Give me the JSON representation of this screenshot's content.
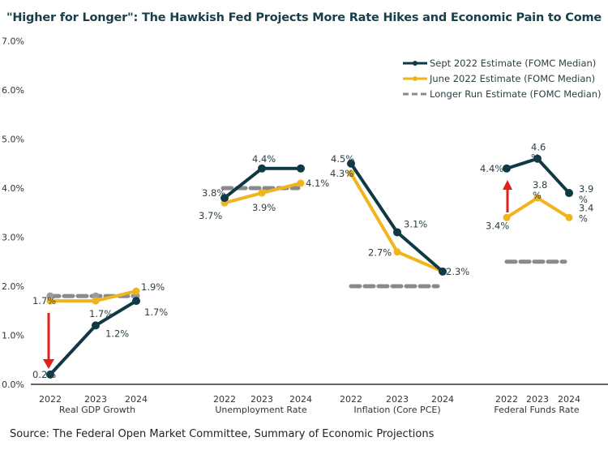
{
  "chart_data": {
    "type": "line",
    "title": "\"Higher for Longer\": The Hawkish Fed Projects More Rate Hikes and Economic Pain to Come",
    "source": "Source: The Federal Open Market Committee, Summary of Economic Projections",
    "ylim": [
      0,
      7
    ],
    "y_ticks": [
      "0.0%",
      "1.0%",
      "2.0%",
      "3.0%",
      "4.0%",
      "5.0%",
      "6.0%",
      "7.0%"
    ],
    "grid": false,
    "legend_position": "top-right",
    "colors": {
      "sept": "#0f3a45",
      "june": "#f2b41c",
      "longer_run": "#8a8a8a",
      "arrow": "#e3201b"
    },
    "legend": [
      "Sept 2022 Estimate (FOMC Median)",
      "June 2022 Estimate (FOMC Median)",
      "Longer Run Estimate (FOMC Median)"
    ],
    "groups": [
      {
        "name": "Real GDP Growth",
        "years": [
          "2022",
          "2023",
          "2024"
        ],
        "sept": [
          0.2,
          1.2,
          1.7
        ],
        "june": [
          1.7,
          1.7,
          1.9
        ],
        "longer_run": 1.8,
        "sept_labels": [
          "0.2%",
          "1.2%",
          "1.7%"
        ],
        "june_labels": [
          "1.7%",
          "1.7%",
          "1.9%"
        ],
        "arrow": "down"
      },
      {
        "name": "Unemployment Rate",
        "years": [
          "2022",
          "2023",
          "2024"
        ],
        "sept": [
          3.8,
          4.4,
          4.4
        ],
        "june": [
          3.7,
          3.9,
          4.1
        ],
        "longer_run": 4.0,
        "sept_labels": [
          "3.8%",
          "4.4%",
          ""
        ],
        "june_labels": [
          "3.7%",
          "3.9%",
          "4.1%"
        ]
      },
      {
        "name": "Inflation (Core PCE)",
        "years": [
          "2022",
          "2023",
          "2024"
        ],
        "sept": [
          4.5,
          3.1,
          2.3
        ],
        "june": [
          4.3,
          2.7,
          2.3
        ],
        "longer_run": 2.0,
        "sept_labels": [
          "4.5%",
          "3.1%",
          ""
        ],
        "june_labels": [
          "4.3%",
          "2.7%",
          "2.3%"
        ]
      },
      {
        "name": "Federal Funds Rate",
        "years": [
          "2022",
          "2023",
          "2024"
        ],
        "sept": [
          4.4,
          4.6,
          3.9
        ],
        "june": [
          3.4,
          3.8,
          3.4
        ],
        "longer_run": 2.5,
        "sept_labels": [
          "4.4%",
          "4.6\n%",
          "3.9\n%"
        ],
        "june_labels": [
          "3.4%",
          "3.8\n%",
          "3.4\n%"
        ],
        "arrow": "up"
      }
    ]
  }
}
